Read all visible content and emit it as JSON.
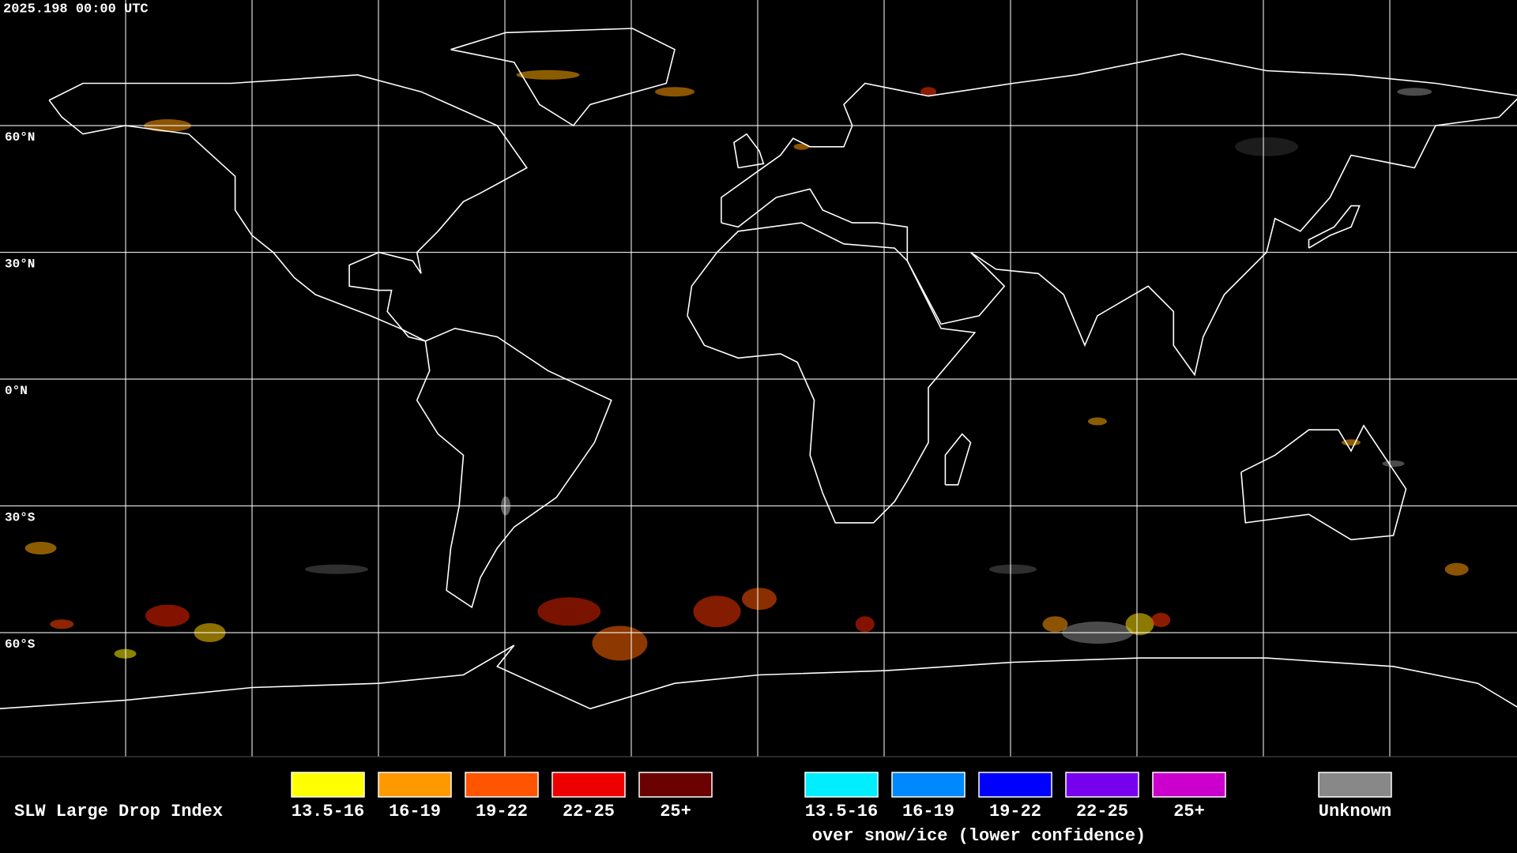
{
  "header": {
    "timestamp": "2025.198 00:00 UTC"
  },
  "map": {
    "latitude_labels": [
      "60°N",
      "30°N",
      "0°N",
      "30°S",
      "60°S"
    ]
  },
  "legend": {
    "title": "SLW Large Drop Index",
    "items": [
      {
        "label": "13.5-16",
        "color": "#ffff00"
      },
      {
        "label": "16-19",
        "color": "#ff9900"
      },
      {
        "label": "19-22",
        "color": "#ff5500"
      },
      {
        "label": "22-25",
        "color": "#ee0000"
      },
      {
        "label": "25+",
        "color": "#6a0000"
      }
    ],
    "snow_items": [
      {
        "label": "13.5-16",
        "color": "#00eeff"
      },
      {
        "label": "16-19",
        "color": "#0088ff"
      },
      {
        "label": "19-22",
        "color": "#0000ff"
      },
      {
        "label": "22-25",
        "color": "#7700ee"
      },
      {
        "label": "25+",
        "color": "#cc00cc"
      }
    ],
    "snow_caption": "over snow/ice (lower confidence)",
    "unknown": {
      "label": "Unknown",
      "color": "#888888"
    }
  }
}
